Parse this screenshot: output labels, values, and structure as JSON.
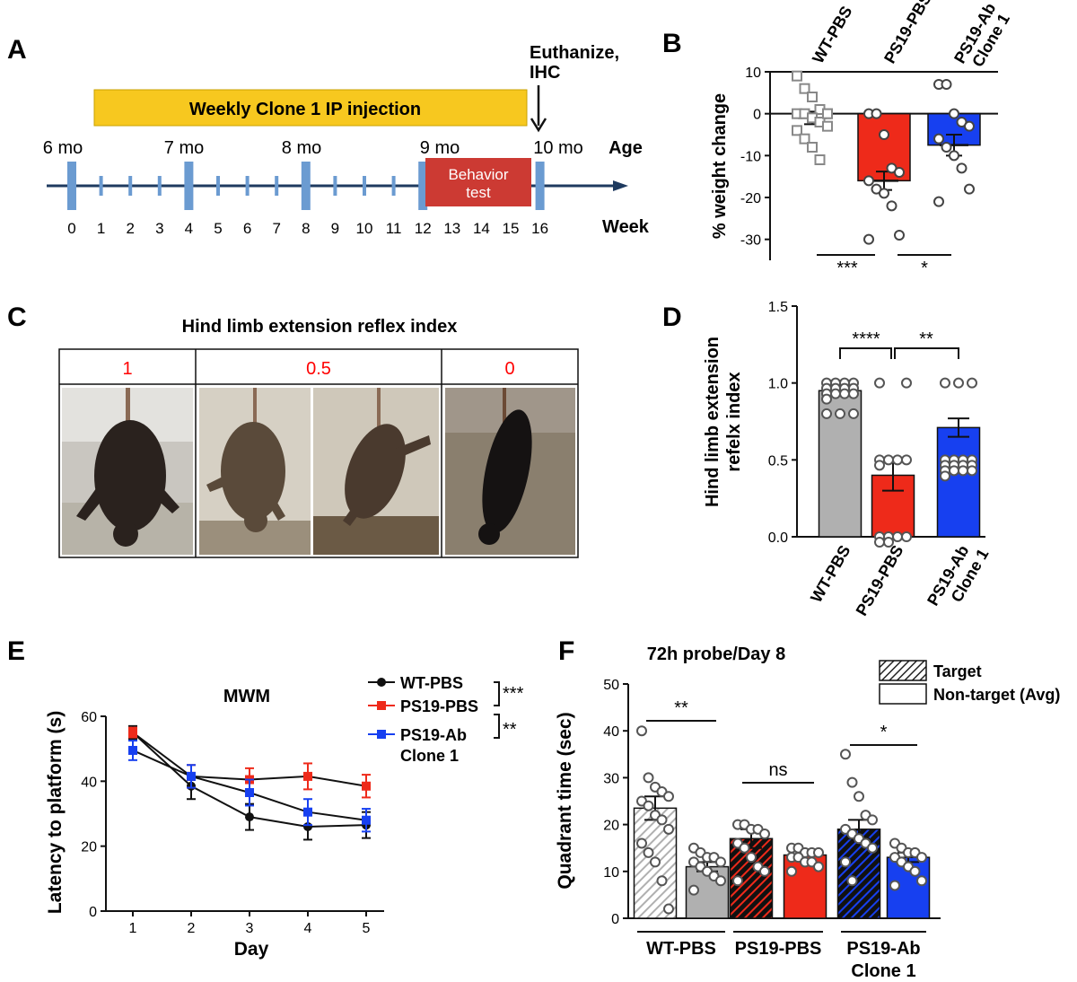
{
  "panel_labels": {
    "A": "A",
    "B": "B",
    "C": "C",
    "D": "D",
    "E": "E",
    "F": "F"
  },
  "colors": {
    "wt": "#b0b0b0",
    "ps19": "#ee2a1a",
    "ab": "#1740f0",
    "timeline_bar": "#f7c81f",
    "behavior_box": "#cc3a33",
    "tick_blue": "#6b9bd1",
    "axis_line": "#1e3a5f",
    "index_red": "#ff0000"
  },
  "panelA": {
    "injection_label": "Weekly Clone 1 IP injection",
    "euthanize_label": "Euthanize,",
    "euthanize_label2": "IHC",
    "age_title": "Age",
    "week_title": "Week",
    "behavior_label_1": "Behavior",
    "behavior_label_2": "test",
    "ages": [
      "6 mo",
      "7 mo",
      "8 mo",
      "9 mo",
      "10 mo"
    ],
    "weeks": [
      "0",
      "1",
      "2",
      "3",
      "4",
      "5",
      "6",
      "7",
      "8",
      "9",
      "10",
      "11",
      "12",
      "13",
      "14",
      "15",
      "16"
    ]
  },
  "panelC": {
    "title": "Hind limb extension reflex index",
    "index_values": [
      "1",
      "0.5",
      "0"
    ]
  },
  "chart_data": [
    {
      "panel": "B",
      "type": "bar",
      "ylabel": "% weight change",
      "ylim": [
        -35,
        10
      ],
      "yticks": [
        10,
        0,
        -10,
        -20,
        -30
      ],
      "ytick_labels": [
        "10",
        "0",
        "-10",
        "-20",
        "-30"
      ],
      "categories": [
        "WT-PBS",
        "PS19-PBS",
        "PS19-Ab Clone 1"
      ],
      "category_label_lines": [
        [
          "WT-PBS"
        ],
        [
          "PS19-PBS"
        ],
        [
          "PS19-Ab",
          "Clone 1"
        ]
      ],
      "values": [
        -1,
        -16,
        -7.5
      ],
      "sem": [
        1.5,
        2.2,
        2.5
      ],
      "points": [
        [
          9,
          6,
          4,
          1,
          0,
          0,
          0,
          -1,
          -2,
          -3,
          -4,
          -6,
          -8,
          -11,
          0
        ],
        [
          0,
          0,
          -5,
          -13,
          -14,
          -16,
          -18,
          -19,
          -22,
          -29,
          -30
        ],
        [
          7,
          7,
          0,
          -2,
          -3,
          -6,
          -8,
          -10,
          -13,
          -18,
          -21
        ]
      ],
      "significance": [
        {
          "label": "***"
        },
        {
          "label": "*"
        }
      ]
    },
    {
      "panel": "D",
      "type": "bar",
      "ylabel": "Hind limb extension refelx index",
      "ylabel_lines": [
        "Hind limb extension",
        "refelx index"
      ],
      "ylim": [
        0,
        1.5
      ],
      "yticks": [
        0.0,
        0.5,
        1.0,
        1.5
      ],
      "ytick_labels": [
        "0.0",
        "0.5",
        "1.0",
        "1.5"
      ],
      "categories": [
        "WT-PBS",
        "PS19-PBS",
        "PS19-Ab Clone 1"
      ],
      "category_label_lines": [
        [
          "WT-PBS"
        ],
        [
          "PS19-PBS"
        ],
        [
          "PS19-Ab",
          "Clone 1"
        ]
      ],
      "values": [
        0.95,
        0.4,
        0.71
      ],
      "sem": [
        0.03,
        0.1,
        0.06
      ],
      "points": [
        [
          1,
          1,
          1,
          1,
          1,
          1,
          1,
          1,
          1,
          1,
          1,
          1,
          1,
          0.8,
          0.8,
          0.8
        ],
        [
          1,
          1,
          0.5,
          0.5,
          0.5,
          0.5,
          0.5,
          0,
          0,
          0,
          0,
          0,
          0
        ],
        [
          1,
          1,
          1,
          0.5,
          0.5,
          0.5,
          0.5,
          0.5,
          0.5,
          0.5,
          0.5,
          0.5,
          0.5,
          0.5,
          0.5,
          0.5
        ]
      ],
      "significance": [
        {
          "label": "****"
        },
        {
          "label": "**"
        }
      ]
    },
    {
      "panel": "E",
      "type": "line",
      "title": "MWM",
      "xlabel": "Day",
      "ylabel": "Latency to platform (s)",
      "x": [
        1,
        2,
        3,
        4,
        5
      ],
      "ylim": [
        0,
        60
      ],
      "yticks": [
        0,
        20,
        40,
        60
      ],
      "ytick_labels": [
        "0",
        "20",
        "40",
        "60"
      ],
      "xtick_labels": [
        "1",
        "2",
        "3",
        "4",
        "5"
      ],
      "series": [
        {
          "name": "WT-PBS",
          "values": [
            55,
            38.5,
            29,
            26,
            26.5
          ],
          "err": [
            2,
            4,
            4,
            4,
            4
          ],
          "marker": "circle"
        },
        {
          "name": "PS19-PBS",
          "values": [
            55,
            41.5,
            40.5,
            41.5,
            38.5
          ],
          "err": [
            1.5,
            3.5,
            3.5,
            4,
            3.5
          ],
          "marker": "square"
        },
        {
          "name": "PS19-Ab",
          "name_line2": "Clone 1",
          "values": [
            49.5,
            41.5,
            36.5,
            30.5,
            28
          ],
          "err": [
            3,
            3.5,
            4,
            4,
            3.5
          ],
          "marker": "square"
        }
      ],
      "significance": [
        {
          "label": "***"
        },
        {
          "label": "**"
        }
      ]
    },
    {
      "panel": "F",
      "type": "bar",
      "title": "72h probe/Day 8",
      "ylabel": "Quadrant time (sec)",
      "ylim": [
        0,
        50
      ],
      "yticks": [
        0,
        10,
        20,
        30,
        40,
        50
      ],
      "ytick_labels": [
        "0",
        "10",
        "20",
        "30",
        "40",
        "50"
      ],
      "legend": [
        "Target",
        "Non-target (Avg)"
      ],
      "group_labels": [
        [
          "WT-PBS"
        ],
        [
          "PS19-PBS"
        ],
        [
          "PS19-Ab",
          "Clone 1"
        ]
      ],
      "series": [
        {
          "name": "Target",
          "values": [
            23.5,
            17,
            19
          ]
        },
        {
          "name": "Non-target (Avg)",
          "values": [
            11,
            13.5,
            13
          ]
        }
      ],
      "sem": [
        [
          2.5,
          2,
          2
        ],
        [
          1,
          1,
          1
        ]
      ],
      "points": [
        [
          [
            40,
            30,
            28,
            27,
            26,
            25,
            24,
            22,
            21,
            19,
            16,
            14,
            12,
            8,
            2
          ]
        ],
        [
          [
            20,
            20,
            19,
            19,
            18,
            16,
            15,
            13,
            11,
            10,
            8
          ]
        ],
        [
          [
            35,
            29,
            26,
            22,
            21,
            19,
            18,
            17,
            16,
            15,
            12,
            8
          ]
        ]
      ],
      "points_nontarget": [
        [
          15,
          14,
          13,
          13,
          12,
          12,
          11,
          10,
          9,
          8,
          6
        ],
        [
          15,
          15,
          14,
          14,
          14,
          13,
          13,
          12,
          12,
          11,
          10
        ],
        [
          16,
          15,
          14,
          14,
          13,
          13,
          12,
          11,
          10,
          8,
          7
        ]
      ],
      "significance": [
        {
          "label": "**"
        },
        {
          "label": "ns"
        },
        {
          "label": "*"
        }
      ]
    }
  ]
}
